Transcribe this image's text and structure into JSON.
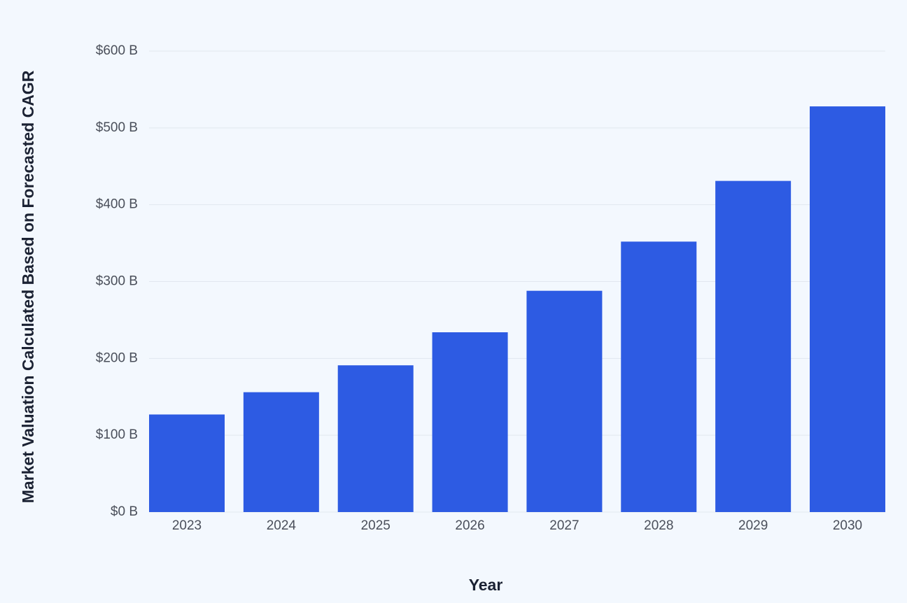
{
  "chart_data": {
    "type": "bar",
    "x_label": "Year",
    "y_label": "Market Valuation Calculated Based on Forecasted CAGR",
    "categories": [
      "2023",
      "2024",
      "2025",
      "2026",
      "2027",
      "2028",
      "2029",
      "2030"
    ],
    "values": [
      127,
      156,
      191,
      234,
      288,
      352,
      431,
      528
    ],
    "color": "#2d5be3",
    "ylim": [
      0,
      600
    ],
    "yticks": [
      {
        "value": 0,
        "label": "$0 B"
      },
      {
        "value": 100,
        "label": "$100 B"
      },
      {
        "value": 200,
        "label": "$200 B"
      },
      {
        "value": 300,
        "label": "$300 B"
      },
      {
        "value": 400,
        "label": "$400 B"
      },
      {
        "value": 500,
        "label": "$500 B"
      },
      {
        "value": 600,
        "label": "$600 B"
      }
    ],
    "grid": true
  }
}
